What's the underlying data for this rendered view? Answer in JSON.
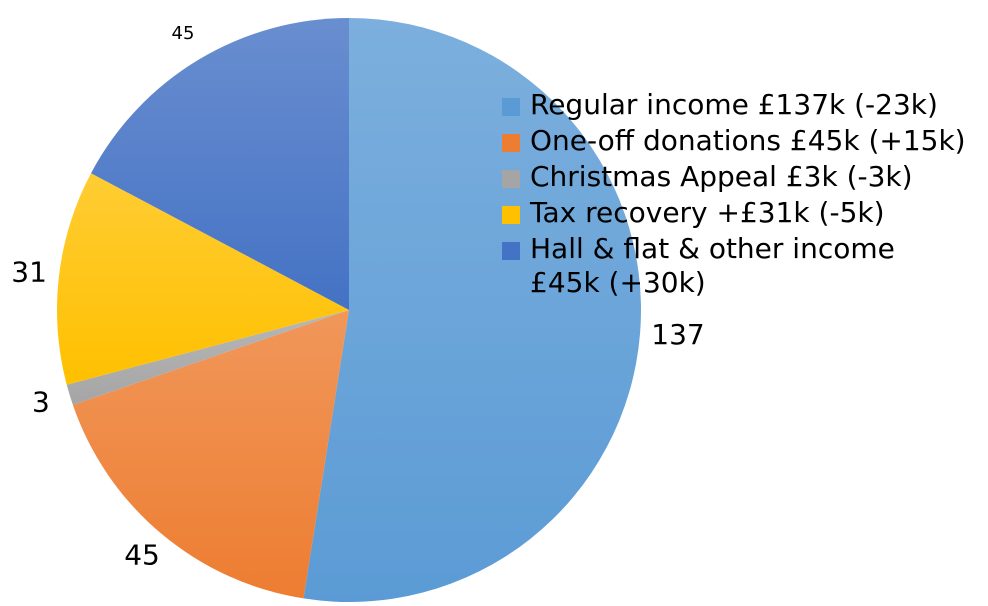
{
  "chart_data": {
    "type": "pie",
    "categories": [
      "Regular income £137k (-23k)",
      "One-off donations £45k (+15k)",
      "Christmas Appeal £3k (-3k)",
      "Tax recovery +£31k (-5k)",
      "Hall & flat & other income £45k (+30k)"
    ],
    "values": [
      137,
      45,
      3,
      31,
      45
    ],
    "colors": [
      "#5b9bd5",
      "#ed7d31",
      "#a5a5a5",
      "#ffc000",
      "#4472c4"
    ],
    "legend": "right"
  }
}
